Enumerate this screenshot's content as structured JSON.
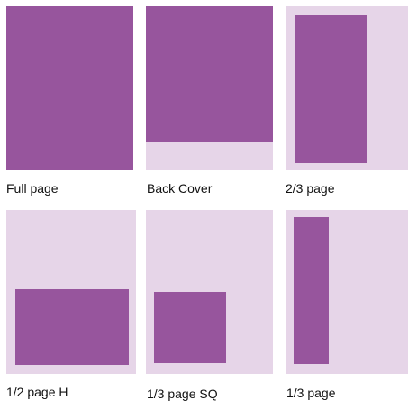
{
  "colors": {
    "tile_background": "#e6d5e8",
    "ad_fill": "#97559d",
    "caption_text": "#111111"
  },
  "options": [
    {
      "label": "Full page"
    },
    {
      "label": "Back Cover"
    },
    {
      "label": "2/3 page"
    },
    {
      "label": "1/2 page H"
    },
    {
      "label": "1/3 page SQ"
    },
    {
      "label": "1/3 page"
    }
  ]
}
